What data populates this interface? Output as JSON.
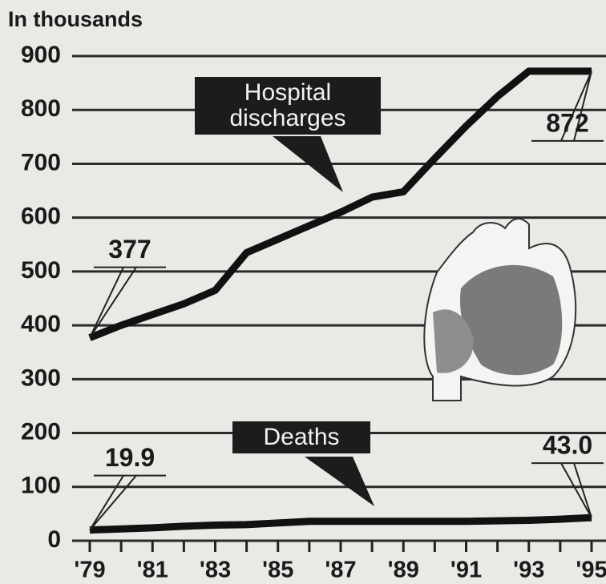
{
  "chart_data": {
    "type": "line",
    "y_axis_label": "In thousands",
    "categories": [
      "'79",
      null,
      "'81",
      null,
      "'83",
      null,
      "'85",
      null,
      "'87",
      null,
      "'89",
      null,
      "'91",
      null,
      "'93",
      null,
      "'95"
    ],
    "series": [
      {
        "name": "Hospital discharges",
        "color": "#111111",
        "values": [
          377,
          400,
          420,
          440,
          465,
          535,
          560,
          585,
          610,
          638,
          648,
          710,
          770,
          825,
          872,
          872,
          872
        ],
        "value_labels": [
          "377",
          null,
          null,
          null,
          null,
          null,
          null,
          null,
          null,
          null,
          null,
          null,
          null,
          null,
          null,
          null,
          "872"
        ]
      },
      {
        "name": "Deaths",
        "color": "#111111",
        "values": [
          19.9,
          22,
          24,
          27,
          29,
          30,
          33,
          36,
          36,
          36,
          36,
          36,
          36,
          37,
          38,
          40,
          43.0
        ],
        "value_labels": [
          "19.9",
          null,
          null,
          null,
          null,
          null,
          null,
          null,
          null,
          null,
          null,
          null,
          null,
          null,
          null,
          null,
          "43.0"
        ]
      }
    ],
    "ylim": [
      0,
      900
    ],
    "yticks": [
      0,
      100,
      200,
      300,
      400,
      500,
      600,
      700,
      800,
      900
    ],
    "grid": true
  }
}
